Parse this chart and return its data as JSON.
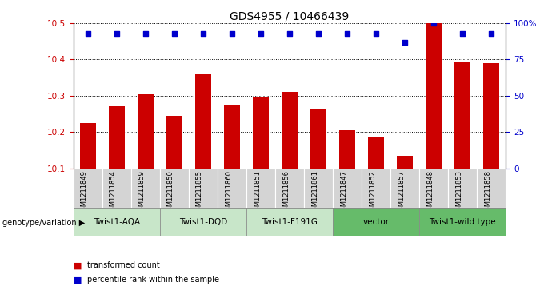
{
  "title": "GDS4955 / 10466439",
  "samples": [
    "GSM1211849",
    "GSM1211854",
    "GSM1211859",
    "GSM1211850",
    "GSM1211855",
    "GSM1211860",
    "GSM1211851",
    "GSM1211856",
    "GSM1211861",
    "GSM1211847",
    "GSM1211852",
    "GSM1211857",
    "GSM1211848",
    "GSM1211853",
    "GSM1211858"
  ],
  "bar_values": [
    10.225,
    10.27,
    10.305,
    10.245,
    10.36,
    10.275,
    10.295,
    10.31,
    10.265,
    10.205,
    10.185,
    10.135,
    10.5,
    10.395,
    10.39
  ],
  "percentile_values": [
    93,
    93,
    93,
    93,
    93,
    93,
    93,
    93,
    93,
    93,
    93,
    87,
    100,
    93,
    93
  ],
  "bar_color": "#cc0000",
  "percentile_color": "#0000cc",
  "ylim_left": [
    10.1,
    10.5
  ],
  "ylim_right": [
    0,
    100
  ],
  "yticks_left": [
    10.1,
    10.2,
    10.3,
    10.4,
    10.5
  ],
  "yticks_right": [
    0,
    25,
    50,
    75,
    100
  ],
  "ytick_labels_right": [
    "0",
    "25",
    "50",
    "75",
    "100%"
  ],
  "dotted_lines": [
    10.2,
    10.3,
    10.4,
    10.5
  ],
  "groups": [
    {
      "label": "Twist1-AQA",
      "start": 0,
      "end": 3,
      "color": "#c8e6c9"
    },
    {
      "label": "Twist1-DQD",
      "start": 3,
      "end": 6,
      "color": "#c8e6c9"
    },
    {
      "label": "Twist1-F191G",
      "start": 6,
      "end": 9,
      "color": "#c8e6c9"
    },
    {
      "label": "vector",
      "start": 9,
      "end": 12,
      "color": "#66bb6a"
    },
    {
      "label": "Twist1-wild type",
      "start": 12,
      "end": 15,
      "color": "#66bb6a"
    }
  ],
  "group_label_prefix": "genotype/variation",
  "legend_bar_label": "transformed count",
  "legend_dot_label": "percentile rank within the sample",
  "bar_width": 0.55,
  "bg_color": "#ffffff",
  "tick_label_color_left": "#cc0000",
  "tick_label_color_right": "#0000cc",
  "title_fontsize": 10,
  "tick_fontsize": 7.5,
  "sample_fontsize": 6,
  "group_fontsize": 7.5
}
